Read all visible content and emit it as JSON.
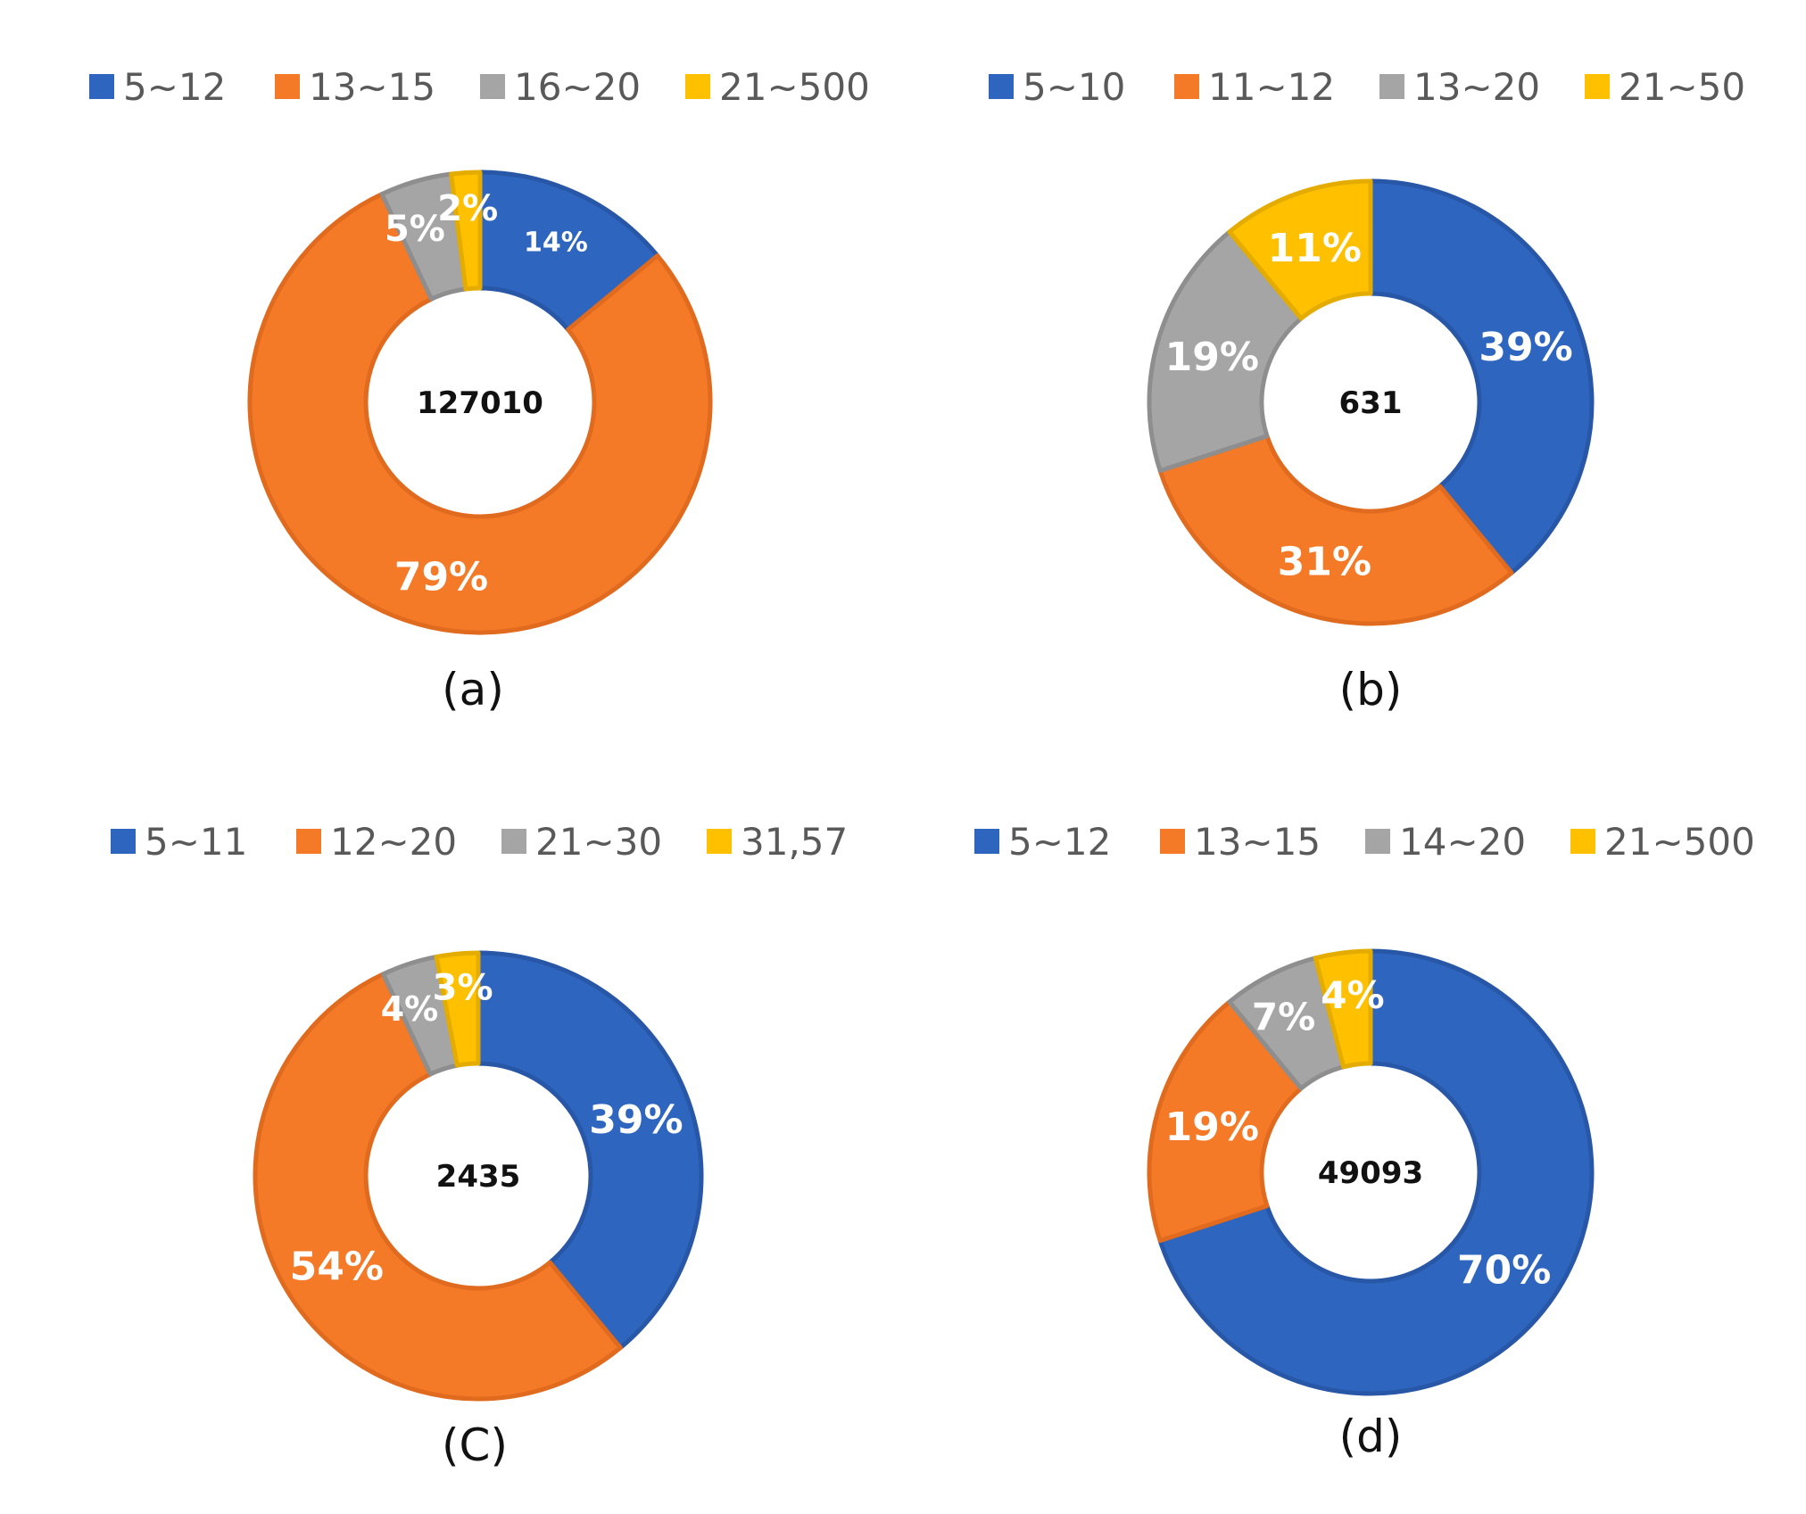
{
  "colors": {
    "blue": "#2E66BF",
    "orange": "#F47A27",
    "gray": "#A5A5A5",
    "yellow": "#FFC000",
    "stroke_blue": "#2757A6",
    "stroke_orange": "#E06A1E",
    "stroke_gray": "#8E8E8E",
    "stroke_yellow": "#E5AC00"
  },
  "chart_data": [
    {
      "type": "pie",
      "variant": "donut",
      "panel": "(a)",
      "center_label": "127010",
      "categories": [
        "5~12",
        "13~15",
        "16~20",
        "21~500"
      ],
      "values": [
        14,
        79,
        5,
        2
      ],
      "value_labels": [
        "14%",
        "79%",
        "5%",
        "2%"
      ],
      "legend": "top"
    },
    {
      "type": "pie",
      "variant": "donut",
      "panel": "(b)",
      "center_label": "631",
      "categories": [
        "5~10",
        "11~12",
        "13~20",
        "21~50"
      ],
      "values": [
        39,
        31,
        19,
        11
      ],
      "value_labels": [
        "39%",
        "31%",
        "19%",
        "11%"
      ],
      "legend": "top"
    },
    {
      "type": "pie",
      "variant": "donut",
      "panel": "(C)",
      "center_label": "2435",
      "categories": [
        "5~11",
        "12~20",
        "21~30",
        "31,57"
      ],
      "values": [
        39,
        54,
        4,
        3
      ],
      "value_labels": [
        "39%",
        "54%",
        "4%",
        "3%"
      ],
      "legend": "top"
    },
    {
      "type": "pie",
      "variant": "donut",
      "panel": "(d)",
      "center_label": "49093",
      "categories": [
        "5~12",
        "13~15",
        "14~20",
        "21~500"
      ],
      "values": [
        70,
        19,
        7,
        4
      ],
      "value_labels": [
        "70%",
        "19%",
        "7%",
        "4%"
      ],
      "legend": "top"
    }
  ]
}
